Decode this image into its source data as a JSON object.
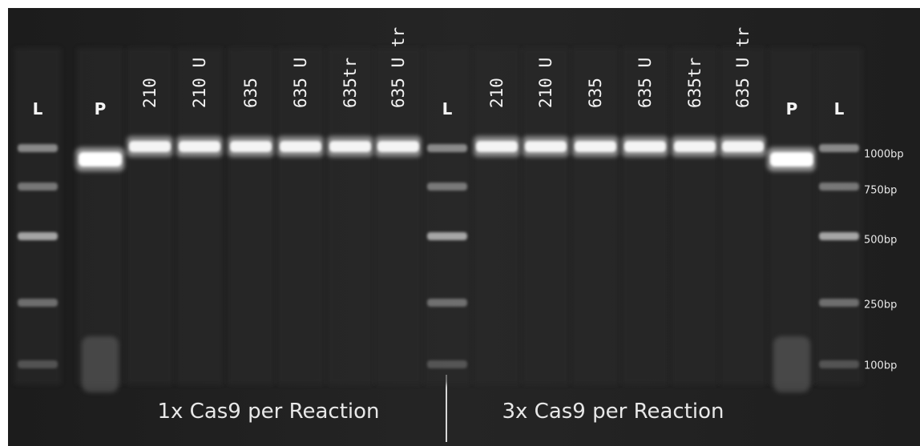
{
  "lanes": [
    {
      "label": "L"
    },
    {
      "label": "P"
    },
    {
      "label": "210"
    },
    {
      "label": "210 U"
    },
    {
      "label": "635"
    },
    {
      "label": "635 U"
    },
    {
      "label": "635tr"
    },
    {
      "label": "635 U tr"
    },
    {
      "label": "L"
    },
    {
      "label": "210"
    },
    {
      "label": "210 U"
    },
    {
      "label": "635"
    },
    {
      "label": "635 U"
    },
    {
      "label": "635tr"
    },
    {
      "label": "635 U tr"
    },
    {
      "label": "P"
    },
    {
      "label": "L"
    }
  ],
  "ladder": [
    "1000bp",
    "750bp",
    "500bp",
    "250bp",
    "100bp"
  ],
  "captions": [
    "1x Cas9 per Reaction",
    "3x Cas9 per Reaction"
  ]
}
